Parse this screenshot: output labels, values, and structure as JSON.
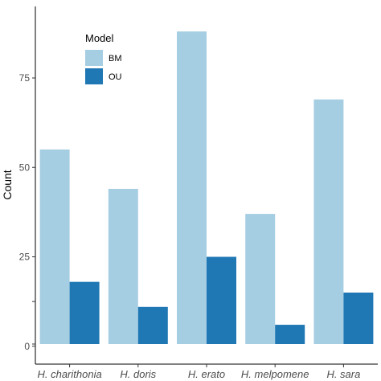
{
  "chart_data": {
    "type": "bar",
    "categories": [
      "H. charithonia",
      "H. doris",
      "H. erato",
      "H. melpomene",
      "H. sara"
    ],
    "series": [
      {
        "name": "BM",
        "values": [
          55,
          44,
          88,
          37,
          69
        ],
        "color": "#a6cee3"
      },
      {
        "name": "OU",
        "values": [
          18,
          11,
          25,
          6,
          15
        ],
        "color": "#1f78b4"
      }
    ],
    "ylabel": "Count",
    "xlabel": "",
    "ylim": [
      0,
      95
    ],
    "y_baseline": -5,
    "yticks": [
      0,
      25,
      50,
      75
    ],
    "legend": {
      "title": "Model",
      "placement": "top-left"
    },
    "grid": false
  }
}
